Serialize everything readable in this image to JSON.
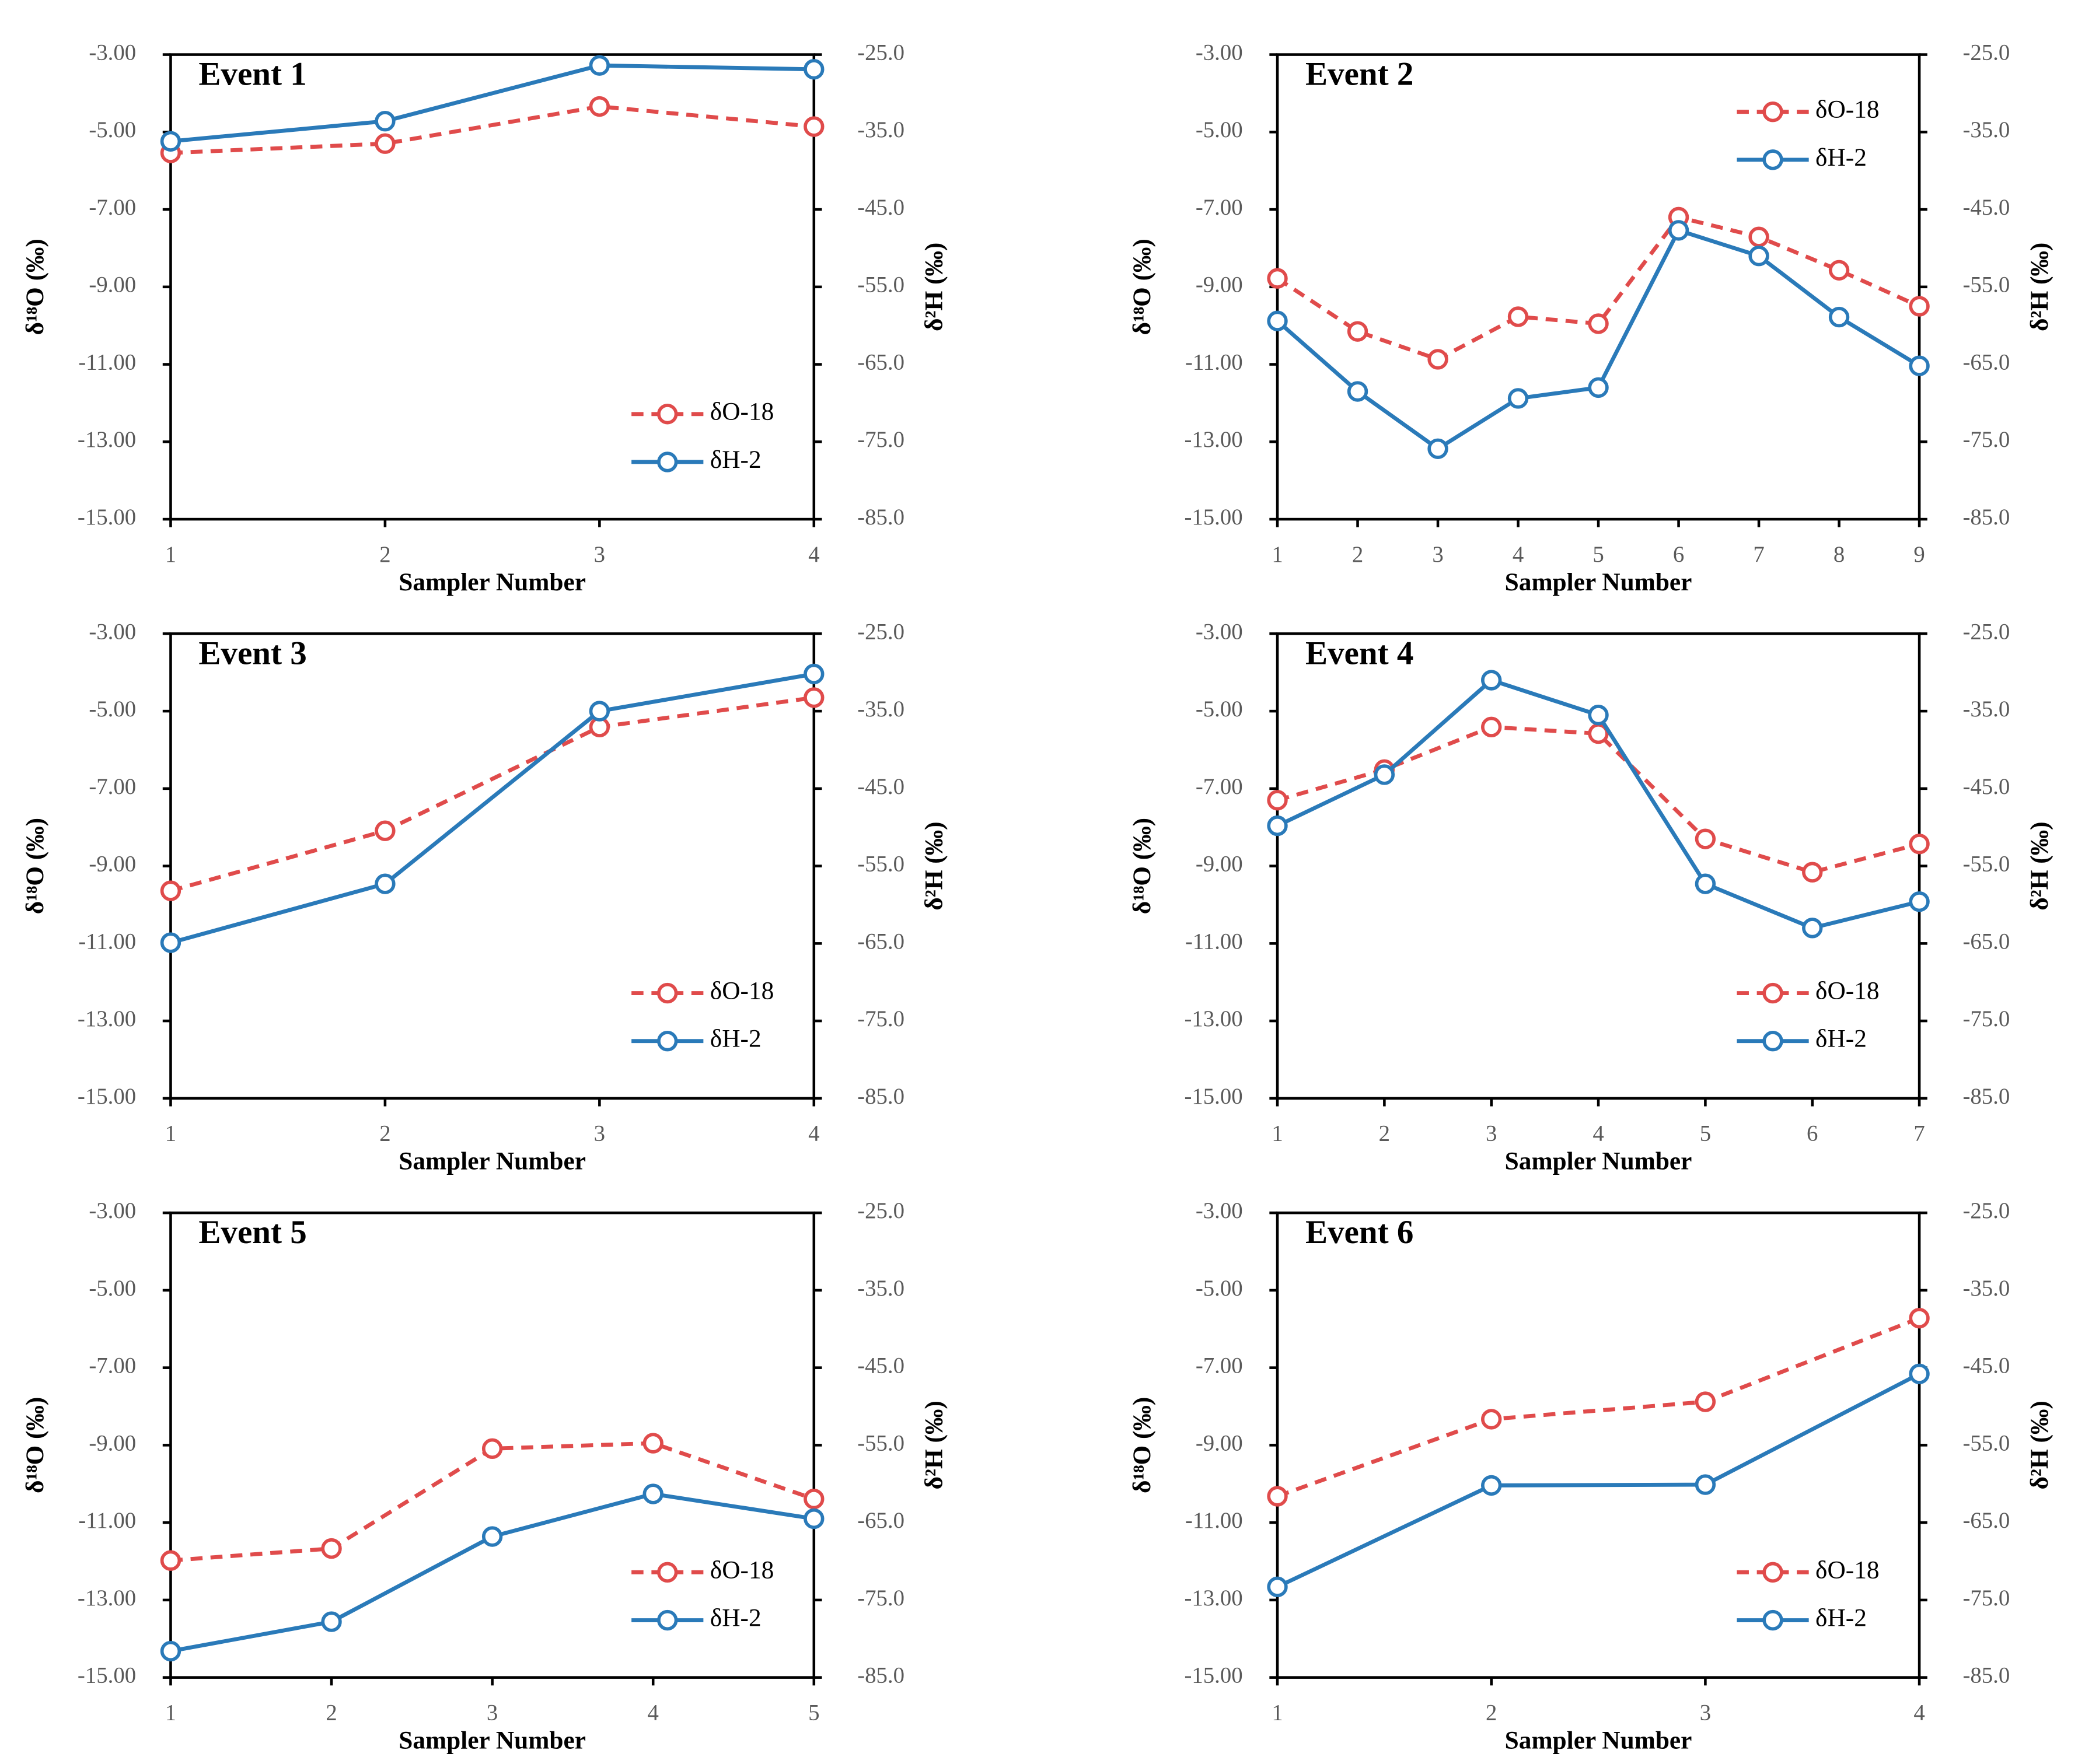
{
  "chart_data": [
    {
      "type": "line",
      "title": "Event 1",
      "xlabel": "Sampler Number",
      "ylabel": "δ¹⁸O (‰)",
      "y2label": "δ²H (‰)",
      "x": [
        1,
        2,
        3,
        4
      ],
      "xlim": [
        1,
        4
      ],
      "xticks": [
        1,
        2,
        3,
        4
      ],
      "ylim": [
        -15,
        -3
      ],
      "yticks": [
        {
          "value": -15,
          "label": "-15.00"
        },
        {
          "value": -13,
          "label": "-13.00"
        },
        {
          "value": -11,
          "label": "-11.00"
        },
        {
          "value": -9,
          "label": "-9.00"
        },
        {
          "value": -7,
          "label": "-7.00"
        },
        {
          "value": -5,
          "label": "-5.00"
        },
        {
          "value": -3,
          "label": "-3.00"
        }
      ],
      "y2lim": [
        -85,
        -25
      ],
      "y2ticks": [
        {
          "value": -85,
          "label": "-85.0"
        },
        {
          "value": -75,
          "label": "-75.0"
        },
        {
          "value": -65,
          "label": "-65.0"
        },
        {
          "value": -55,
          "label": "-55.0"
        },
        {
          "value": -45,
          "label": "-45.0"
        },
        {
          "value": -35,
          "label": "-35.0"
        },
        {
          "value": -25,
          "label": "-25.0"
        }
      ],
      "legend": "lower right",
      "series": [
        {
          "name": "δO-18",
          "color": "#e04b4b",
          "line_style": "dashed",
          "values": [
            -5.54,
            -5.3,
            -4.34,
            -4.86
          ]
        },
        {
          "name": "δH-2",
          "color": "#2a7ab9",
          "line_style": "solid",
          "axis": "y2",
          "values": [
            -36.2,
            -33.6,
            -26.4,
            -26.9
          ]
        }
      ]
    },
    {
      "type": "line",
      "title": "Event 2",
      "xlabel": "Sampler Number",
      "ylabel": "δ¹⁸O (‰)",
      "y2label": "δ²H (‰)",
      "x": [
        1,
        2,
        3,
        4,
        5,
        6,
        7,
        8,
        9
      ],
      "xlim": [
        1,
        9
      ],
      "xticks": [
        1,
        2,
        3,
        4,
        5,
        6,
        7,
        8,
        9
      ],
      "ylim": [
        -15,
        -3
      ],
      "yticks": [
        {
          "value": -15,
          "label": "-15.00"
        },
        {
          "value": -13,
          "label": "-13.00"
        },
        {
          "value": -11,
          "label": "-11.00"
        },
        {
          "value": -9,
          "label": "-9.00"
        },
        {
          "value": -7,
          "label": "-7.00"
        },
        {
          "value": -5,
          "label": "-5.00"
        },
        {
          "value": -3,
          "label": "-3.00"
        }
      ],
      "y2lim": [
        -85,
        -25
      ],
      "y2ticks": [
        {
          "value": -85,
          "label": "-85.0"
        },
        {
          "value": -75,
          "label": "-75.0"
        },
        {
          "value": -65,
          "label": "-65.0"
        },
        {
          "value": -55,
          "label": "-55.0"
        },
        {
          "value": -45,
          "label": "-45.0"
        },
        {
          "value": -35,
          "label": "-35.0"
        },
        {
          "value": -25,
          "label": "-25.0"
        }
      ],
      "legend": "upper right",
      "series": [
        {
          "name": "δO-18",
          "color": "#e04b4b",
          "line_style": "dashed",
          "values": [
            -8.78,
            -10.15,
            -10.87,
            -9.77,
            -9.95,
            -7.2,
            -7.71,
            -8.57,
            -9.5
          ]
        },
        {
          "name": "δH-2",
          "color": "#2a7ab9",
          "line_style": "solid",
          "axis": "y2",
          "values": [
            -59.4,
            -68.5,
            -75.9,
            -69.4,
            -68.0,
            -47.7,
            -51.0,
            -58.9,
            -65.2
          ]
        }
      ]
    },
    {
      "type": "line",
      "title": "Event 3",
      "xlabel": "Sampler Number",
      "ylabel": "δ¹⁸O (‰)",
      "y2label": "δ²H (‰)",
      "x": [
        1,
        2,
        3,
        4
      ],
      "xlim": [
        1,
        4
      ],
      "xticks": [
        1,
        2,
        3,
        4
      ],
      "ylim": [
        -15,
        -3
      ],
      "yticks": [
        {
          "value": -15,
          "label": "-15.00"
        },
        {
          "value": -13,
          "label": "-13.00"
        },
        {
          "value": -11,
          "label": "-11.00"
        },
        {
          "value": -9,
          "label": "-9.00"
        },
        {
          "value": -7,
          "label": "-7.00"
        },
        {
          "value": -5,
          "label": "-5.00"
        },
        {
          "value": -3,
          "label": "-3.00"
        }
      ],
      "y2lim": [
        -85,
        -25
      ],
      "y2ticks": [
        {
          "value": -85,
          "label": "-85.0"
        },
        {
          "value": -75,
          "label": "-75.0"
        },
        {
          "value": -65,
          "label": "-65.0"
        },
        {
          "value": -55,
          "label": "-55.0"
        },
        {
          "value": -45,
          "label": "-45.0"
        },
        {
          "value": -35,
          "label": "-35.0"
        },
        {
          "value": -25,
          "label": "-25.0"
        }
      ],
      "legend": "lower right",
      "series": [
        {
          "name": "δO-18",
          "color": "#e04b4b",
          "line_style": "dashed",
          "values": [
            -9.64,
            -8.09,
            -5.41,
            -4.65
          ]
        },
        {
          "name": "δH-2",
          "color": "#2a7ab9",
          "line_style": "solid",
          "axis": "y2",
          "values": [
            -64.9,
            -57.3,
            -35.0,
            -30.2
          ]
        }
      ]
    },
    {
      "type": "line",
      "title": "Event 4",
      "xlabel": "Sampler Number",
      "ylabel": "δ¹⁸O (‰)",
      "y2label": "δ²H (‰)",
      "x": [
        1,
        2,
        3,
        4,
        5,
        6,
        7
      ],
      "xlim": [
        1,
        7
      ],
      "xticks": [
        1,
        2,
        3,
        4,
        5,
        6,
        7
      ],
      "ylim": [
        -15,
        -3
      ],
      "yticks": [
        {
          "value": -15,
          "label": "-15.00"
        },
        {
          "value": -13,
          "label": "-13.00"
        },
        {
          "value": -11,
          "label": "-11.00"
        },
        {
          "value": -9,
          "label": "-9.00"
        },
        {
          "value": -7,
          "label": "-7.00"
        },
        {
          "value": -5,
          "label": "-5.00"
        },
        {
          "value": -3,
          "label": "-3.00"
        }
      ],
      "y2lim": [
        -85,
        -25
      ],
      "y2ticks": [
        {
          "value": -85,
          "label": "-85.0"
        },
        {
          "value": -75,
          "label": "-75.0"
        },
        {
          "value": -65,
          "label": "-65.0"
        },
        {
          "value": -55,
          "label": "-55.0"
        },
        {
          "value": -45,
          "label": "-45.0"
        },
        {
          "value": -35,
          "label": "-35.0"
        },
        {
          "value": -25,
          "label": "-25.0"
        }
      ],
      "legend": "lower right",
      "series": [
        {
          "name": "δO-18",
          "color": "#e04b4b",
          "line_style": "dashed",
          "values": [
            -7.3,
            -6.51,
            -5.41,
            -5.58,
            -8.3,
            -9.16,
            -8.43
          ]
        },
        {
          "name": "δH-2",
          "color": "#2a7ab9",
          "line_style": "solid",
          "axis": "y2",
          "values": [
            -49.8,
            -43.2,
            -31.0,
            -35.5,
            -57.3,
            -63.0,
            -59.6
          ]
        }
      ]
    },
    {
      "type": "line",
      "title": "Event 5",
      "xlabel": "Sampler Number",
      "ylabel": "δ¹⁸O (‰)",
      "y2label": "δ²H (‰)",
      "x": [
        1,
        2,
        3,
        4,
        5
      ],
      "xlim": [
        1,
        5
      ],
      "xticks": [
        1,
        2,
        3,
        4,
        5
      ],
      "ylim": [
        -15,
        -3
      ],
      "yticks": [
        {
          "value": -15,
          "label": "-15.00"
        },
        {
          "value": -13,
          "label": "-13.00"
        },
        {
          "value": -11,
          "label": "-11.00"
        },
        {
          "value": -9,
          "label": "-9.00"
        },
        {
          "value": -7,
          "label": "-7.00"
        },
        {
          "value": -5,
          "label": "-5.00"
        },
        {
          "value": -3,
          "label": "-3.00"
        }
      ],
      "y2lim": [
        -85,
        -25
      ],
      "y2ticks": [
        {
          "value": -85,
          "label": "-85.0"
        },
        {
          "value": -75,
          "label": "-75.0"
        },
        {
          "value": -65,
          "label": "-65.0"
        },
        {
          "value": -55,
          "label": "-55.0"
        },
        {
          "value": -45,
          "label": "-45.0"
        },
        {
          "value": -35,
          "label": "-35.0"
        },
        {
          "value": -25,
          "label": "-25.0"
        }
      ],
      "legend": "lower right",
      "series": [
        {
          "name": "δO-18",
          "color": "#e04b4b",
          "line_style": "dashed",
          "values": [
            -11.98,
            -11.67,
            -9.09,
            -8.95,
            -10.39
          ]
        },
        {
          "name": "δH-2",
          "color": "#2a7ab9",
          "line_style": "solid",
          "axis": "y2",
          "values": [
            -81.6,
            -77.8,
            -66.8,
            -61.3,
            -64.5
          ]
        }
      ]
    },
    {
      "type": "line",
      "title": "Event 6",
      "xlabel": "Sampler Number",
      "ylabel": "δ¹⁸O (‰)",
      "y2label": "δ²H (‰)",
      "x": [
        1,
        2,
        3,
        4
      ],
      "xlim": [
        1,
        4
      ],
      "xticks": [
        1,
        2,
        3,
        4
      ],
      "ylim": [
        -15,
        -3
      ],
      "yticks": [
        {
          "value": -15,
          "label": "-15.00"
        },
        {
          "value": -13,
          "label": "-13.00"
        },
        {
          "value": -11,
          "label": "-11.00"
        },
        {
          "value": -9,
          "label": "-9.00"
        },
        {
          "value": -7,
          "label": "-7.00"
        },
        {
          "value": -5,
          "label": "-5.00"
        },
        {
          "value": -3,
          "label": "-3.00"
        }
      ],
      "y2lim": [
        -85,
        -25
      ],
      "y2ticks": [
        {
          "value": -85,
          "label": "-85.0"
        },
        {
          "value": -75,
          "label": "-75.0"
        },
        {
          "value": -65,
          "label": "-65.0"
        },
        {
          "value": -55,
          "label": "-55.0"
        },
        {
          "value": -45,
          "label": "-45.0"
        },
        {
          "value": -35,
          "label": "-35.0"
        },
        {
          "value": -25,
          "label": "-25.0"
        }
      ],
      "legend": "lower right",
      "series": [
        {
          "name": "δO-18",
          "color": "#e04b4b",
          "line_style": "dashed",
          "values": [
            -10.32,
            -8.33,
            -7.88,
            -5.72
          ]
        },
        {
          "name": "δH-2",
          "color": "#2a7ab9",
          "line_style": "solid",
          "axis": "y2",
          "values": [
            -73.3,
            -60.2,
            -60.1,
            -45.8
          ]
        }
      ]
    }
  ]
}
